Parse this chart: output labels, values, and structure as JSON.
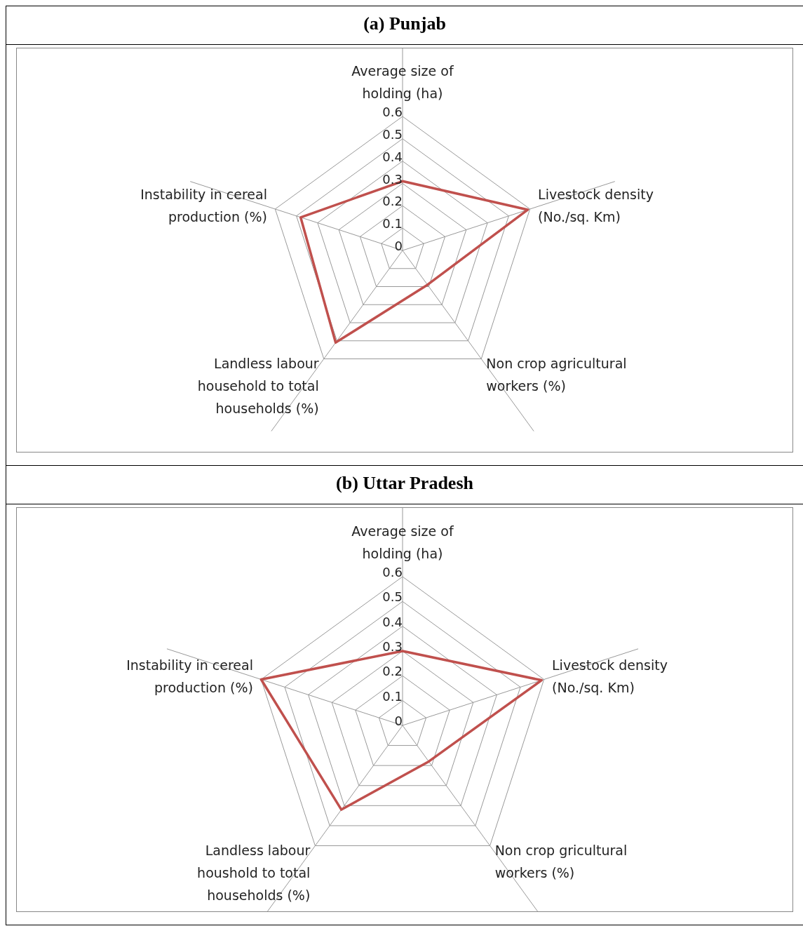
{
  "chart_data": [
    {
      "type": "radar",
      "title": "(a)  Punjab",
      "categories": [
        "Average size of holding (ha)",
        "Livestock density (No./sq. Km)",
        "Non crop agricultural workers (%)",
        "Landless labour household to total households (%)",
        "Instability in cereal production (%)"
      ],
      "series": [
        {
          "color": "#c0504d",
          "values": [
            0.31,
            0.59,
            0.19,
            0.51,
            0.48
          ]
        }
      ],
      "ylim": [
        0,
        0.6
      ],
      "yticks": [
        0,
        0.1,
        0.2,
        0.3,
        0.4,
        0.5,
        0.6
      ],
      "grid": true,
      "legend": false
    },
    {
      "type": "radar",
      "title": "(b)  Uttar Pradesh",
      "categories": [
        "Average size of holding (ha)",
        "Livestock density (No./sq. Km)",
        "Non crop gricultural workers (%)",
        "Landless labour houshold to total households (%)",
        "Instability in cereal production (%)"
      ],
      "series": [
        {
          "color": "#c0504d",
          "values": [
            0.3,
            0.59,
            0.18,
            0.42,
            0.6
          ]
        }
      ],
      "ylim": [
        0,
        0.6
      ],
      "yticks": [
        0,
        0.1,
        0.2,
        0.3,
        0.4,
        0.5,
        0.6
      ],
      "grid": true,
      "legend": false
    }
  ]
}
